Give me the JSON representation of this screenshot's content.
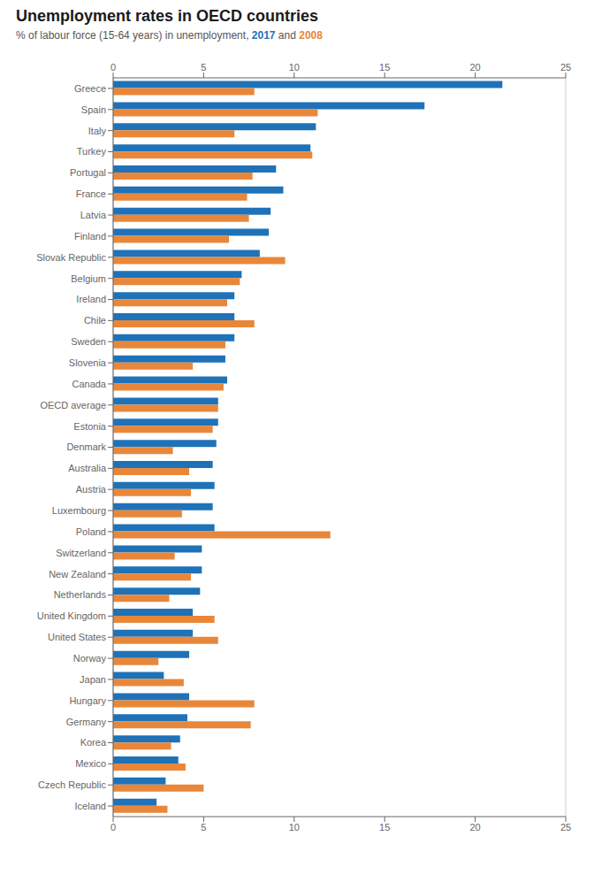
{
  "chart_data": {
    "type": "bar",
    "orientation": "horizontal",
    "title": "Unemployment rates in OECD countries",
    "subtitle": "% of labour force (15-64 years) in unemployment, 2017 and 2008",
    "categories": [
      "Greece",
      "Spain",
      "Italy",
      "Turkey",
      "Portugal",
      "France",
      "Latvia",
      "Finland",
      "Slovak Republic",
      "Belgium",
      "Ireland",
      "Chile",
      "Sweden",
      "Slovenia",
      "Canada",
      "OECD average",
      "Estonia",
      "Denmark",
      "Australia",
      "Austria",
      "Luxembourg",
      "Poland",
      "Switzerland",
      "New Zealand",
      "Netherlands",
      "United Kingdom",
      "United States",
      "Norway",
      "Japan",
      "Hungary",
      "Germany",
      "Korea",
      "Mexico",
      "Czech Republic",
      "Iceland"
    ],
    "series": [
      {
        "name": "2017",
        "color": "#1F72B8",
        "values": [
          21.5,
          17.2,
          11.2,
          10.9,
          9.0,
          9.4,
          8.7,
          8.6,
          8.1,
          7.1,
          6.7,
          6.7,
          6.7,
          6.2,
          6.3,
          5.8,
          5.8,
          5.7,
          5.5,
          5.6,
          5.5,
          5.6,
          4.9,
          4.9,
          4.8,
          4.4,
          4.4,
          4.2,
          2.8,
          4.2,
          4.1,
          3.7,
          3.6,
          2.9,
          2.4
        ]
      },
      {
        "name": "2008",
        "color": "#E8873A",
        "values": [
          7.8,
          11.3,
          6.7,
          11.0,
          7.7,
          7.4,
          7.5,
          6.4,
          9.5,
          7.0,
          6.3,
          7.8,
          6.2,
          4.4,
          6.1,
          5.8,
          5.5,
          3.3,
          4.2,
          4.3,
          3.8,
          12.0,
          3.4,
          4.3,
          3.1,
          5.6,
          5.8,
          2.5,
          3.9,
          7.8,
          7.6,
          3.2,
          4.0,
          5.0,
          3.0
        ]
      }
    ],
    "xlim": [
      0,
      25
    ],
    "xticks": [
      0,
      5,
      10,
      15,
      20,
      25
    ],
    "grid": true
  }
}
